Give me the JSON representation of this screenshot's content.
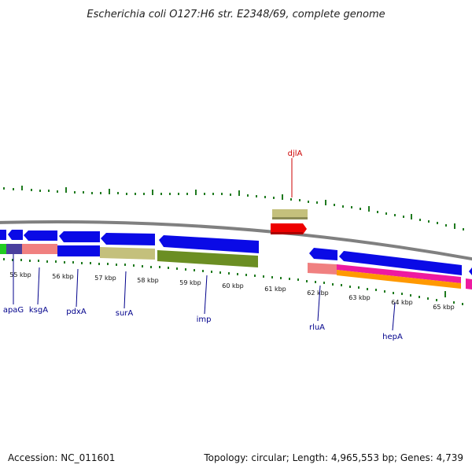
{
  "title": "Escherichia coli O127:H6 str. E2348/69, complete genome",
  "footer": {
    "accession": "Accession: NC_011601",
    "summary": "Topology: circular; Length: 4,965,553 bp; Genes: 4,739"
  },
  "colors": {
    "forward_gene": "#0a0ae6",
    "tick": "#1f7a1f",
    "backbone": "#808080",
    "label_forward": "#cc0000",
    "label_reverse": "#00008b"
  },
  "scale_labels": [
    "55 kbp",
    "56 kbp",
    "57 kbp",
    "58 kbp",
    "59 kbp",
    "60 kbp",
    "61 kbp",
    "62 kbp",
    "63 kbp",
    "64 kbp",
    "65 kbp"
  ],
  "gene_labels": {
    "forward": [
      "djlA"
    ],
    "reverse": [
      "apaG",
      "ksgA",
      "pdxA",
      "surA",
      "imp",
      "rluA",
      "hepA"
    ]
  }
}
